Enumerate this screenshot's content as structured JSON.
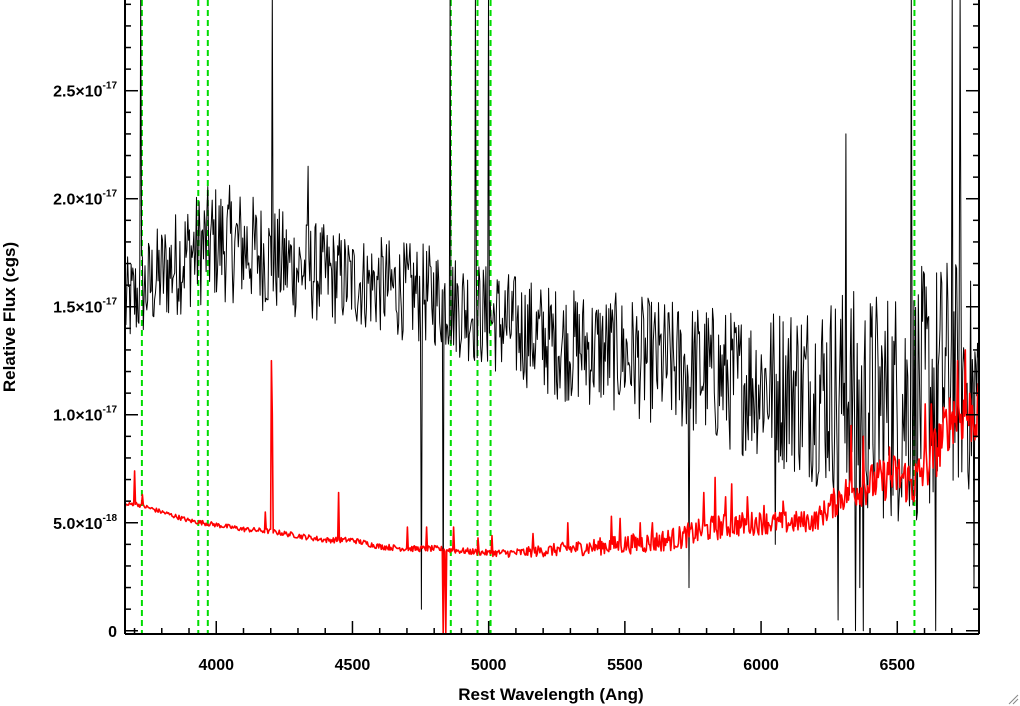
{
  "chart_data": {
    "type": "line",
    "title": "",
    "xlabel": "Rest Wavelength (Ang)",
    "ylabel": "Relative Flux (cgs)",
    "xlim": [
      3665,
      6800
    ],
    "ylim": [
      -1.5e-19,
      2.92e-17
    ],
    "x_ticks": [
      {
        "value": 4000,
        "label": "4000"
      },
      {
        "value": 4500,
        "label": "4500"
      },
      {
        "value": 5000,
        "label": "5000"
      },
      {
        "value": 5500,
        "label": "5500"
      },
      {
        "value": 6000,
        "label": "6000"
      },
      {
        "value": 6500,
        "label": "6500"
      }
    ],
    "x_minor_step": 100,
    "y_ticks": [
      {
        "value": 0,
        "mantissa": "0",
        "exponent": ""
      },
      {
        "value": 5e-18,
        "mantissa": "5.0×10",
        "exponent": "-18"
      },
      {
        "value": 1e-17,
        "mantissa": "1.0×10",
        "exponent": "-17"
      },
      {
        "value": 1.5e-17,
        "mantissa": "1.5×10",
        "exponent": "-17"
      },
      {
        "value": 2e-17,
        "mantissa": "2.0×10",
        "exponent": "-17"
      },
      {
        "value": 2.5e-17,
        "mantissa": "2.5×10",
        "exponent": "-17"
      }
    ],
    "y_minor_step": 1e-18,
    "grid": false,
    "vertical_lines": {
      "color": "#00dd00",
      "style": "dashed",
      "wavelengths": [
        3727,
        3934,
        3969,
        4861,
        4959,
        5007,
        6563
      ]
    },
    "series": [
      {
        "color": "#000000",
        "style": "noisy-line",
        "anchors_x": [
          3665,
          3800,
          3900,
          4000,
          4100,
          4200,
          4300,
          4400,
          4500,
          4600,
          4700,
          4800,
          4900,
          5000,
          5100,
          5200,
          5300,
          5400,
          5500,
          5600,
          5700,
          5800,
          5900,
          6000,
          6100,
          6200,
          6300,
          6400,
          6500,
          6600,
          6700,
          6800
        ],
        "anchors_y": [
          1.5e-17,
          1.65e-17,
          1.75e-17,
          1.8e-17,
          1.78e-17,
          1.72e-17,
          1.68e-17,
          1.65e-17,
          1.62e-17,
          1.6e-17,
          1.57e-17,
          1.55e-17,
          1.5e-17,
          1.45e-17,
          1.4e-17,
          1.35e-17,
          1.32e-17,
          1.3e-17,
          1.28e-17,
          1.25e-17,
          1.22e-17,
          1.2e-17,
          1.15e-17,
          1.15e-17,
          1.13e-17,
          1.12e-17,
          1.1e-17,
          1.05e-17,
          1.05e-17,
          1.1e-17,
          1.2e-17,
          1.1e-17
        ],
        "noise_anchors_x": [
          3665,
          4000,
          4500,
          5000,
          5500,
          6000,
          6300,
          6600,
          6800
        ],
        "noise_anchors_y": [
          2.2e-18,
          2.8e-18,
          2.2e-18,
          2.5e-18,
          2.8e-18,
          3.5e-18,
          5e-18,
          6e-18,
          5e-18
        ],
        "spikes": [
          {
            "x": 3720,
            "y": 2.95e-17
          },
          {
            "x": 4205,
            "y": 2.95e-17
          },
          {
            "x": 4335,
            "y": 2.15e-17
          },
          {
            "x": 4753,
            "y": 1e-18
          },
          {
            "x": 4833,
            "y": 0
          },
          {
            "x": 4858,
            "y": 2.95e-17
          },
          {
            "x": 4949,
            "y": 2.95e-17
          },
          {
            "x": 4998,
            "y": 2.95e-17
          },
          {
            "x": 5735,
            "y": 2e-18
          },
          {
            "x": 6050,
            "y": 4e-18
          },
          {
            "x": 6282,
            "y": 5e-19
          },
          {
            "x": 6310,
            "y": 2.3e-17
          },
          {
            "x": 6345,
            "y": 0
          },
          {
            "x": 6360,
            "y": 2e-18
          },
          {
            "x": 6373,
            "y": 0
          },
          {
            "x": 6550,
            "y": 2.95e-17
          },
          {
            "x": 6640,
            "y": 0
          },
          {
            "x": 6700,
            "y": 2.95e-17
          },
          {
            "x": 6730,
            "y": 2.95e-17
          },
          {
            "x": 6780,
            "y": 2e-18
          }
        ]
      },
      {
        "color": "#ff0000",
        "style": "line",
        "anchors_x": [
          3665,
          3700,
          3800,
          3900,
          4000,
          4100,
          4200,
          4300,
          4400,
          4500,
          4600,
          4700,
          4800,
          4900,
          5000,
          5100,
          5200,
          5300,
          5400,
          5500,
          5600,
          5700,
          5800,
          5900,
          6000,
          6100,
          6200,
          6300,
          6400,
          6500,
          6560,
          6600,
          6650,
          6700,
          6800
        ],
        "anchors_y": [
          5.8e-18,
          5.9e-18,
          5.5e-18,
          5.1e-18,
          4.9e-18,
          4.7e-18,
          4.6e-18,
          4.4e-18,
          4.2e-18,
          4.2e-18,
          3.9e-18,
          3.8e-18,
          3.8e-18,
          3.7e-18,
          3.6e-18,
          3.6e-18,
          3.7e-18,
          3.8e-18,
          3.9e-18,
          4e-18,
          4.1e-18,
          4.3e-18,
          4.7e-18,
          4.9e-18,
          5e-18,
          5e-18,
          5.1e-18,
          6.3e-18,
          6.8e-18,
          7.2e-18,
          6.8e-18,
          7.5e-18,
          8.5e-18,
          1e-17,
          1e-17
        ],
        "noise_anchors_x": [
          3665,
          5000,
          5400,
          5800,
          6200,
          6300,
          6800
        ],
        "noise_anchors_y": [
          1e-19,
          1.5e-19,
          4e-19,
          6e-19,
          5e-19,
          8e-19,
          1.5e-18
        ],
        "spikes": [
          {
            "x": 3700,
            "y": 7.4e-18
          },
          {
            "x": 3727,
            "y": 6.3e-18
          },
          {
            "x": 4201,
            "y": 1.25e-17
          },
          {
            "x": 4205,
            "y": 1e-17
          },
          {
            "x": 4180,
            "y": 5.5e-18
          },
          {
            "x": 4449,
            "y": 6.4e-18
          },
          {
            "x": 4700,
            "y": 4.8e-18
          },
          {
            "x": 4770,
            "y": 4.8e-18
          },
          {
            "x": 4833,
            "y": -1.5e-19
          },
          {
            "x": 4840,
            "y": -1.5e-19
          },
          {
            "x": 4870,
            "y": 4.8e-18
          },
          {
            "x": 4960,
            "y": 4.3e-18
          },
          {
            "x": 5010,
            "y": 4.4e-18
          },
          {
            "x": 5160,
            "y": 4.5e-18
          },
          {
            "x": 5290,
            "y": 5e-18
          },
          {
            "x": 5450,
            "y": 5.3e-18
          },
          {
            "x": 5480,
            "y": 5.2e-18
          },
          {
            "x": 5555,
            "y": 5e-18
          },
          {
            "x": 5600,
            "y": 5e-18
          },
          {
            "x": 5790,
            "y": 6.4e-18
          },
          {
            "x": 5830,
            "y": 7.1e-18
          },
          {
            "x": 5870,
            "y": 6.2e-18
          },
          {
            "x": 5890,
            "y": 6.8e-18
          },
          {
            "x": 5950,
            "y": 6.2e-18
          },
          {
            "x": 6010,
            "y": 5.8e-18
          },
          {
            "x": 6080,
            "y": 6e-18
          },
          {
            "x": 6330,
            "y": 9.5e-18
          },
          {
            "x": 6375,
            "y": 9e-18
          },
          {
            "x": 6470,
            "y": 8.5e-18
          },
          {
            "x": 6600,
            "y": 1.05e-17
          },
          {
            "x": 6625,
            "y": 1.05e-17
          },
          {
            "x": 6720,
            "y": 1.25e-17
          },
          {
            "x": 6750,
            "y": 1.3e-17
          }
        ]
      }
    ]
  }
}
